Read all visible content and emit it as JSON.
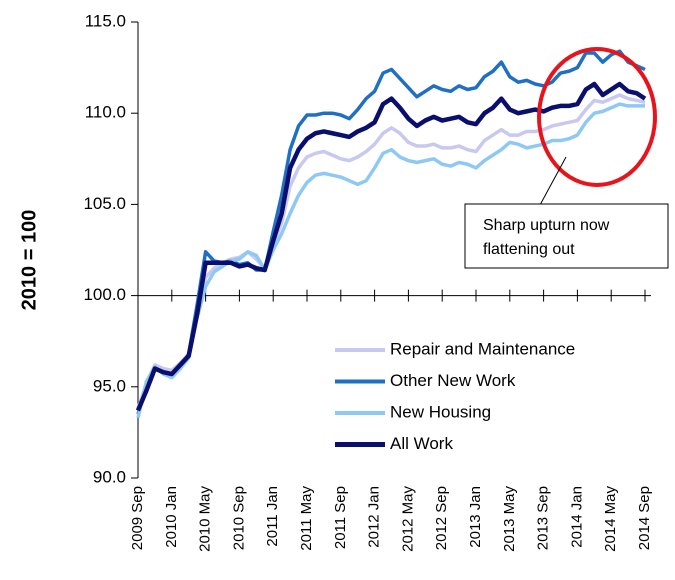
{
  "chart_data": {
    "type": "line",
    "ylabel": "2010 = 100",
    "categories": [
      "2009 Sep",
      null,
      null,
      null,
      "2010 Jan",
      null,
      null,
      null,
      "2010 May",
      null,
      null,
      null,
      "2010 Sep",
      null,
      null,
      null,
      "2011 Jan",
      null,
      null,
      null,
      "2011 May",
      null,
      null,
      null,
      "2011 Sep",
      null,
      null,
      null,
      "2012 Jan",
      null,
      null,
      null,
      "2012 May",
      null,
      null,
      null,
      "2012 Sep",
      null,
      null,
      null,
      "2013 Jan",
      null,
      null,
      null,
      "2013 May",
      null,
      null,
      null,
      "2013 Sep",
      null,
      null,
      null,
      "2014 Jan",
      null,
      null,
      null,
      "2014 May",
      null,
      null,
      null,
      "2014 Sep"
    ],
    "ylim": [
      90,
      115
    ],
    "yticks": [
      {
        "value": 90,
        "label": "90.0"
      },
      {
        "value": 95,
        "label": "95.0"
      },
      {
        "value": 100,
        "label": "100.0"
      },
      {
        "value": 105,
        "label": "105.0"
      },
      {
        "value": 110,
        "label": "110.0"
      },
      {
        "value": 115,
        "label": "115.0"
      }
    ],
    "xaxis_at": 100,
    "legend": "center-right",
    "series": [
      {
        "name": "Repair and Maintenance",
        "color": "#c8c8f0",
        "values": [
          93.8,
          95.2,
          96.2,
          96.0,
          95.9,
          96.3,
          96.8,
          99.0,
          101.0,
          101.5,
          101.8,
          102.0,
          102.1,
          102.4,
          102.0,
          101.5,
          102.8,
          104.0,
          106.0,
          107.0,
          107.6,
          107.8,
          107.9,
          107.7,
          107.5,
          107.4,
          107.6,
          107.9,
          108.3,
          108.9,
          109.2,
          108.9,
          108.4,
          108.2,
          108.2,
          108.3,
          108.1,
          108.1,
          108.2,
          108.0,
          107.9,
          108.5,
          108.8,
          109.1,
          108.8,
          108.8,
          109.0,
          109.0,
          109.1,
          109.3,
          109.4,
          109.5,
          109.6,
          110.2,
          110.7,
          110.6,
          110.8,
          111.0,
          110.8,
          110.7,
          110.6
        ]
      },
      {
        "name": "Other New Work",
        "color": "#1f6fc5",
        "values": [
          93.5,
          95.0,
          96.0,
          95.8,
          95.6,
          96.0,
          96.8,
          99.5,
          102.4,
          101.9,
          101.8,
          101.9,
          101.7,
          101.8,
          101.4,
          101.4,
          103.5,
          105.5,
          108.0,
          109.3,
          109.9,
          109.9,
          110.0,
          110.0,
          109.9,
          109.7,
          110.2,
          110.8,
          111.2,
          112.2,
          112.4,
          111.9,
          111.4,
          110.9,
          111.2,
          111.5,
          111.3,
          111.2,
          111.5,
          111.3,
          111.4,
          112.0,
          112.3,
          112.8,
          112.0,
          111.7,
          111.8,
          111.6,
          111.5,
          111.7,
          112.2,
          112.3,
          112.5,
          113.3,
          113.3,
          112.8,
          113.2,
          113.4,
          112.8,
          112.6,
          112.4
        ]
      },
      {
        "name": "New Housing",
        "color": "#8ec8f5",
        "values": [
          93.3,
          95.3,
          96.1,
          95.7,
          95.5,
          96.0,
          96.6,
          98.8,
          100.5,
          101.3,
          101.6,
          101.9,
          102.0,
          102.4,
          102.2,
          101.4,
          102.5,
          103.4,
          104.5,
          105.5,
          106.2,
          106.6,
          106.7,
          106.6,
          106.5,
          106.3,
          106.1,
          106.3,
          107.0,
          107.8,
          108.0,
          107.6,
          107.4,
          107.3,
          107.4,
          107.5,
          107.2,
          107.1,
          107.3,
          107.2,
          107.0,
          107.4,
          107.7,
          108.0,
          108.4,
          108.3,
          108.1,
          108.2,
          108.3,
          108.5,
          108.5,
          108.6,
          108.8,
          109.5,
          110.0,
          110.1,
          110.3,
          110.5,
          110.4,
          110.4,
          110.4
        ]
      },
      {
        "name": "All Work",
        "color": "#0a0f6e",
        "values": [
          93.7,
          94.8,
          96.0,
          95.8,
          95.7,
          96.2,
          96.7,
          99.0,
          101.8,
          101.8,
          101.8,
          101.8,
          101.6,
          101.7,
          101.5,
          101.4,
          103.0,
          104.5,
          107.0,
          108.0,
          108.6,
          108.9,
          109.0,
          108.9,
          108.8,
          108.7,
          109.0,
          109.2,
          109.5,
          110.5,
          110.8,
          110.3,
          109.7,
          109.3,
          109.6,
          109.8,
          109.6,
          109.7,
          109.8,
          109.5,
          109.4,
          110.0,
          110.3,
          110.8,
          110.2,
          110.0,
          110.1,
          110.2,
          110.1,
          110.3,
          110.4,
          110.4,
          110.5,
          111.3,
          111.6,
          111.0,
          111.3,
          111.6,
          111.2,
          111.1,
          110.8
        ]
      }
    ],
    "annotation": {
      "lines": [
        "Sharp upturn now",
        "flattening out"
      ],
      "circle_color": "#e8141c"
    }
  }
}
